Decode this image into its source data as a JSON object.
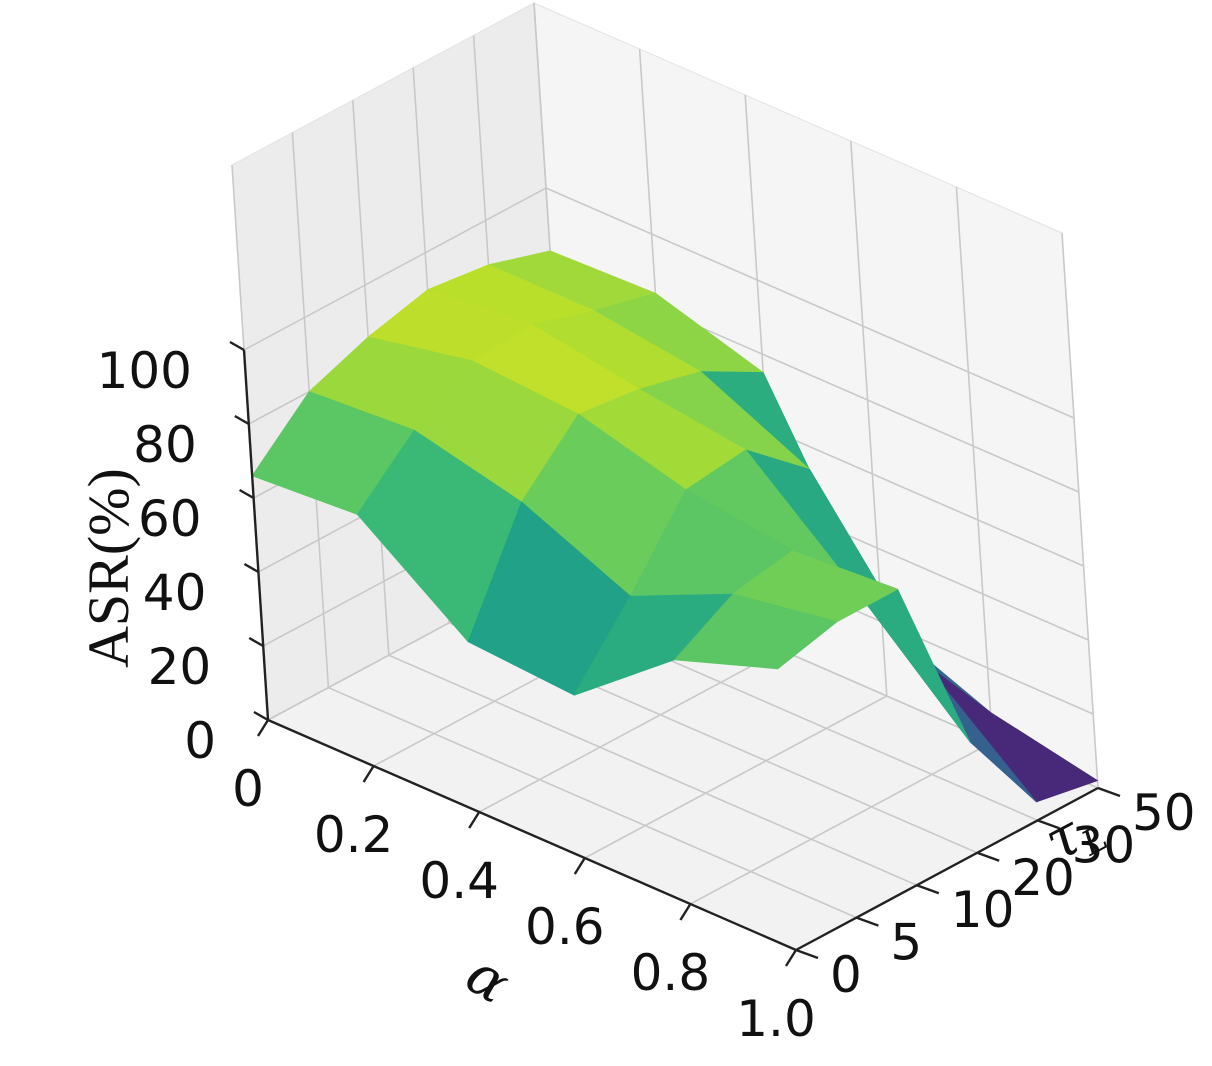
{
  "chart_data": {
    "type": "surface",
    "xlabel": "α",
    "ylabel": "τ_L",
    "zlabel": "ASR(%)",
    "x_ticks": [
      "0",
      "0.2",
      "0.4",
      "0.6",
      "0.8",
      "1.0"
    ],
    "y_ticks": [
      "0",
      "5",
      "10",
      "20",
      "30",
      "50"
    ],
    "z_ticks": [
      "0",
      "20",
      "40",
      "60",
      "80",
      "100"
    ],
    "zlim": [
      0,
      100
    ],
    "grid": true,
    "colormap": "viridis",
    "x": [
      0,
      0.2,
      0.4,
      0.6,
      0.8,
      1.0
    ],
    "y": [
      0,
      5,
      10,
      20,
      30,
      50
    ],
    "z": [
      [
        66,
        80,
        86,
        90,
        88,
        83
      ],
      [
        68,
        82,
        92,
        93,
        88,
        84
      ],
      [
        46,
        75,
        90,
        88,
        84,
        75
      ],
      [
        44,
        62,
        82,
        84,
        70,
        20
      ],
      [
        66,
        75,
        78,
        58,
        30,
        8
      ],
      [
        76,
        80,
        80,
        30,
        5,
        2
      ]
    ]
  }
}
